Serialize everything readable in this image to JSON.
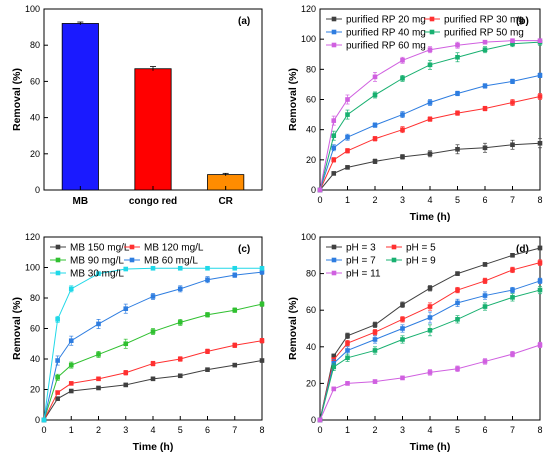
{
  "chart_data": [
    {
      "panel": "(a)",
      "type": "bar",
      "categories": [
        "MB",
        "congo red",
        "CR"
      ],
      "values": [
        92,
        67,
        8.5
      ],
      "errors": [
        0.8,
        1.2,
        0.7
      ],
      "colors": [
        "#1a1aff",
        "#ff0000",
        "#ff8c00"
      ],
      "xlabel": "",
      "ylabel": "Removal (%)",
      "ylim": [
        0,
        100
      ],
      "yticks": [
        0,
        20,
        40,
        60,
        80,
        100
      ]
    },
    {
      "panel": "(b)",
      "type": "line",
      "x": [
        0,
        0.5,
        1,
        2,
        3,
        4,
        5,
        6,
        7,
        8
      ],
      "xlabel": "Time (h)",
      "ylabel": "Removal (%)",
      "xlim": [
        0,
        8
      ],
      "ylim": [
        0,
        120
      ],
      "xticks": [
        0,
        1,
        2,
        3,
        4,
        5,
        6,
        7,
        8
      ],
      "yticks": [
        0,
        20,
        40,
        60,
        80,
        100,
        120
      ],
      "legend_columns": 2,
      "series": [
        {
          "name": "purified RP 20 mg",
          "color": "#404040",
          "values": [
            0,
            11,
            15,
            19,
            22,
            24,
            27,
            28,
            30,
            31
          ],
          "errors": [
            0,
            1,
            1,
            1.5,
            1.5,
            2,
            3,
            3,
            3,
            3
          ]
        },
        {
          "name": "purified RP 30 mg",
          "color": "#ff3030",
          "values": [
            0,
            20,
            26,
            34,
            40,
            47,
            51,
            54,
            58,
            62
          ],
          "errors": [
            0,
            1.5,
            1.5,
            1.5,
            2,
            1.5,
            1.5,
            1.5,
            2,
            2
          ]
        },
        {
          "name": "purified RP 40 mg",
          "color": "#2e7de0",
          "values": [
            0,
            28,
            35,
            43,
            50,
            58,
            64,
            69,
            72,
            76
          ],
          "errors": [
            0,
            2,
            2,
            1.5,
            2,
            2,
            1.5,
            1.5,
            1.5,
            1.5
          ]
        },
        {
          "name": "purified RP 50 mg",
          "color": "#18b070",
          "values": [
            0,
            36,
            50,
            63,
            74,
            83,
            88,
            93,
            97,
            98
          ],
          "errors": [
            0,
            3,
            3,
            2,
            2,
            3,
            3,
            2,
            2,
            2
          ]
        },
        {
          "name": "purified RP 60 mg",
          "color": "#d060e0",
          "values": [
            0,
            46,
            60,
            75,
            86,
            93,
            96,
            98,
            99,
            99
          ],
          "errors": [
            0,
            3,
            3,
            3,
            2,
            2,
            2,
            1,
            1,
            1
          ]
        }
      ]
    },
    {
      "panel": "(c)",
      "type": "line",
      "x": [
        0,
        0.5,
        1,
        2,
        3,
        4,
        5,
        6,
        7,
        8
      ],
      "xlabel": "Time (h)",
      "ylabel": "Removal (%)",
      "xlim": [
        0,
        8
      ],
      "ylim": [
        0,
        120
      ],
      "xticks": [
        0,
        1,
        2,
        3,
        4,
        5,
        6,
        7,
        8
      ],
      "yticks": [
        0,
        20,
        40,
        60,
        80,
        100,
        120
      ],
      "legend_columns": 2,
      "series": [
        {
          "name": "MB 150 mg/L",
          "color": "#404040",
          "values": [
            0,
            14,
            19,
            21,
            23,
            27,
            29,
            33,
            36,
            39
          ],
          "errors": [
            0,
            1,
            1,
            1,
            1,
            1,
            1,
            1,
            1,
            1
          ]
        },
        {
          "name": "MB 120 mg/L",
          "color": "#ff3030",
          "values": [
            0,
            18,
            24,
            27,
            31,
            37,
            40,
            45,
            49,
            52
          ],
          "errors": [
            0,
            1,
            1,
            1,
            1.5,
            1.5,
            1.5,
            1.5,
            1.5,
            1.5
          ]
        },
        {
          "name": "MB 90 mg/L",
          "color": "#30c030",
          "values": [
            0,
            28,
            36,
            43,
            50,
            58,
            64,
            69,
            72,
            76
          ],
          "errors": [
            0,
            2,
            2,
            2,
            3,
            2,
            2,
            1.5,
            1.5,
            1.5
          ]
        },
        {
          "name": "MB 60 mg/L",
          "color": "#2e7de0",
          "values": [
            0,
            39,
            52,
            63,
            73,
            81,
            86,
            92,
            95,
            97
          ],
          "errors": [
            0,
            3,
            3,
            3,
            3,
            2,
            2,
            2,
            1.5,
            1.5
          ]
        },
        {
          "name": "MB 30 mg/L",
          "color": "#20d8e8",
          "values": [
            0,
            66,
            86,
            96,
            99,
            99.5,
            99.5,
            99.5,
            99.5,
            99.5
          ],
          "errors": [
            0,
            2,
            2,
            1,
            0.5,
            0.5,
            0.5,
            0.5,
            0.5,
            0.5
          ]
        }
      ]
    },
    {
      "panel": "(d)",
      "type": "line",
      "x": [
        0,
        0.5,
        1,
        2,
        3,
        4,
        5,
        6,
        7,
        8
      ],
      "xlabel": "Time (h)",
      "ylabel": "Removal (%)",
      "xlim": [
        0,
        8
      ],
      "ylim": [
        0,
        100
      ],
      "xticks": [
        0,
        1,
        2,
        3,
        4,
        5,
        6,
        7,
        8
      ],
      "yticks": [
        0,
        20,
        40,
        60,
        80,
        100
      ],
      "legend_columns": 2,
      "series": [
        {
          "name": "pH = 3",
          "color": "#404040",
          "values": [
            0,
            35,
            46,
            52,
            63,
            72,
            80,
            85,
            90,
            94
          ],
          "errors": [
            0,
            1,
            1.5,
            1.5,
            1.5,
            1.5,
            1,
            1,
            1,
            1
          ]
        },
        {
          "name": "pH = 5",
          "color": "#ff3030",
          "values": [
            0,
            33,
            42,
            48,
            55,
            62,
            71,
            76,
            82,
            86
          ],
          "errors": [
            0,
            1,
            1.5,
            1.5,
            1.5,
            2,
            1.5,
            1.5,
            1.5,
            1.5
          ]
        },
        {
          "name": "pH = 7",
          "color": "#2e7de0",
          "values": [
            0,
            31,
            38,
            44,
            50,
            56,
            64,
            68,
            71,
            76
          ],
          "errors": [
            0,
            2,
            2,
            2,
            2,
            3,
            2,
            2,
            1.5,
            1.5
          ]
        },
        {
          "name": "pH = 9",
          "color": "#18b070",
          "values": [
            0,
            29,
            34,
            38,
            44,
            49,
            55,
            62,
            67,
            71
          ],
          "errors": [
            0,
            2,
            2,
            2,
            2,
            3,
            2,
            2,
            2,
            2
          ]
        },
        {
          "name": "pH = 11",
          "color": "#d060e0",
          "values": [
            0,
            17,
            20,
            21,
            23,
            26,
            28,
            32,
            36,
            41
          ],
          "errors": [
            0,
            1,
            1,
            1,
            1,
            1.5,
            1.5,
            1.5,
            1.5,
            1.5
          ]
        }
      ]
    }
  ]
}
